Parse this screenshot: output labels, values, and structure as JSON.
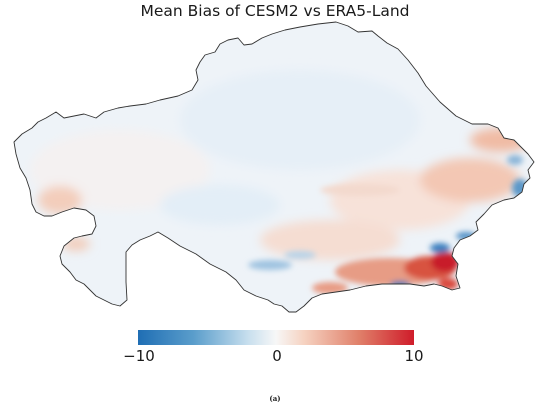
{
  "figure": {
    "title": "Mean Bias of CESM2 vs ERA5-Land",
    "caption": "(a)"
  },
  "colorbar": {
    "min_label": "−10",
    "mid_label": "0",
    "max_label": "10",
    "min": -10,
    "max": 10,
    "colormap": "RdBu_r",
    "colors": {
      "negative": "#1f6eb4",
      "neutral": "#f7f7f7",
      "positive": "#cf1c2a"
    }
  },
  "map": {
    "region": "Kazakhstan",
    "boundary_color": "#333333"
  }
}
